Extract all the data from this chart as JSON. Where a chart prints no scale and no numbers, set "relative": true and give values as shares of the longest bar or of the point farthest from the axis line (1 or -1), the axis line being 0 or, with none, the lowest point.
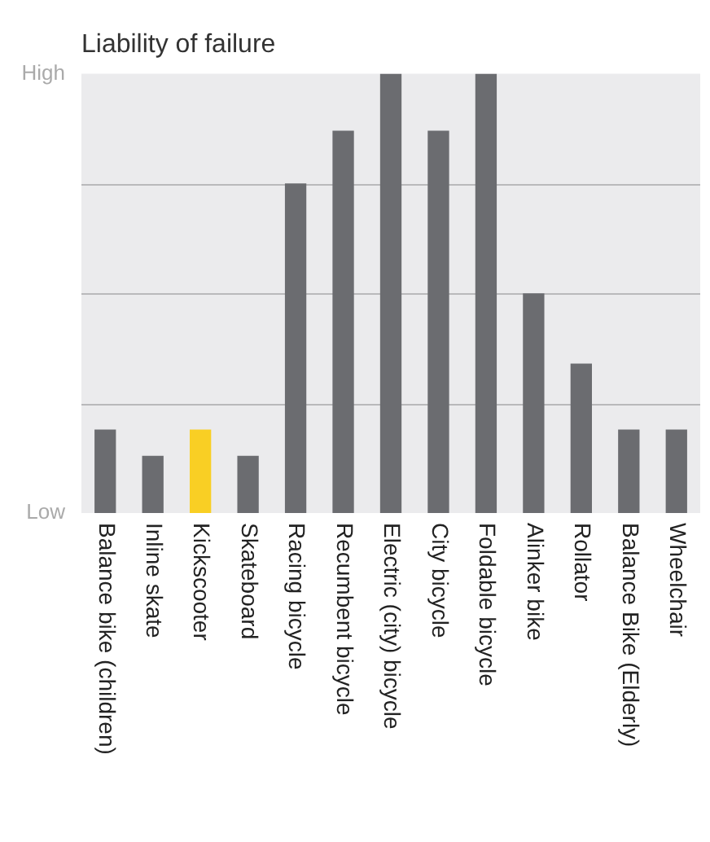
{
  "chart_data": {
    "type": "bar",
    "title": "Liability of failure",
    "relative": true,
    "categories": [
      "Balance bike (children)",
      "Inline skate",
      "Kickscooter",
      "Skateboard",
      "Racing bicycle",
      "Recumbent bicycle",
      "Electric (city) bicycle",
      "City bicycle",
      "Foldable bicycle",
      "Alinker bike",
      "Rollator",
      "Balance Bike (Elderly)",
      "Wheelchair"
    ],
    "values": [
      0.19,
      0.13,
      0.19,
      0.13,
      0.75,
      0.87,
      1,
      0.87,
      1,
      0.5,
      0.34,
      0.19,
      0.19
    ],
    "colors": [
      "#6b6c70",
      "#6b6c70",
      "#f9cf24",
      "#6b6c70",
      "#6b6c70",
      "#6b6c70",
      "#6b6c70",
      "#6b6c70",
      "#6b6c70",
      "#6b6c70",
      "#6b6c70",
      "#6b6c70",
      "#6b6c70"
    ],
    "annotations": [
      "High",
      "Low"
    ],
    "grid": "y"
  }
}
